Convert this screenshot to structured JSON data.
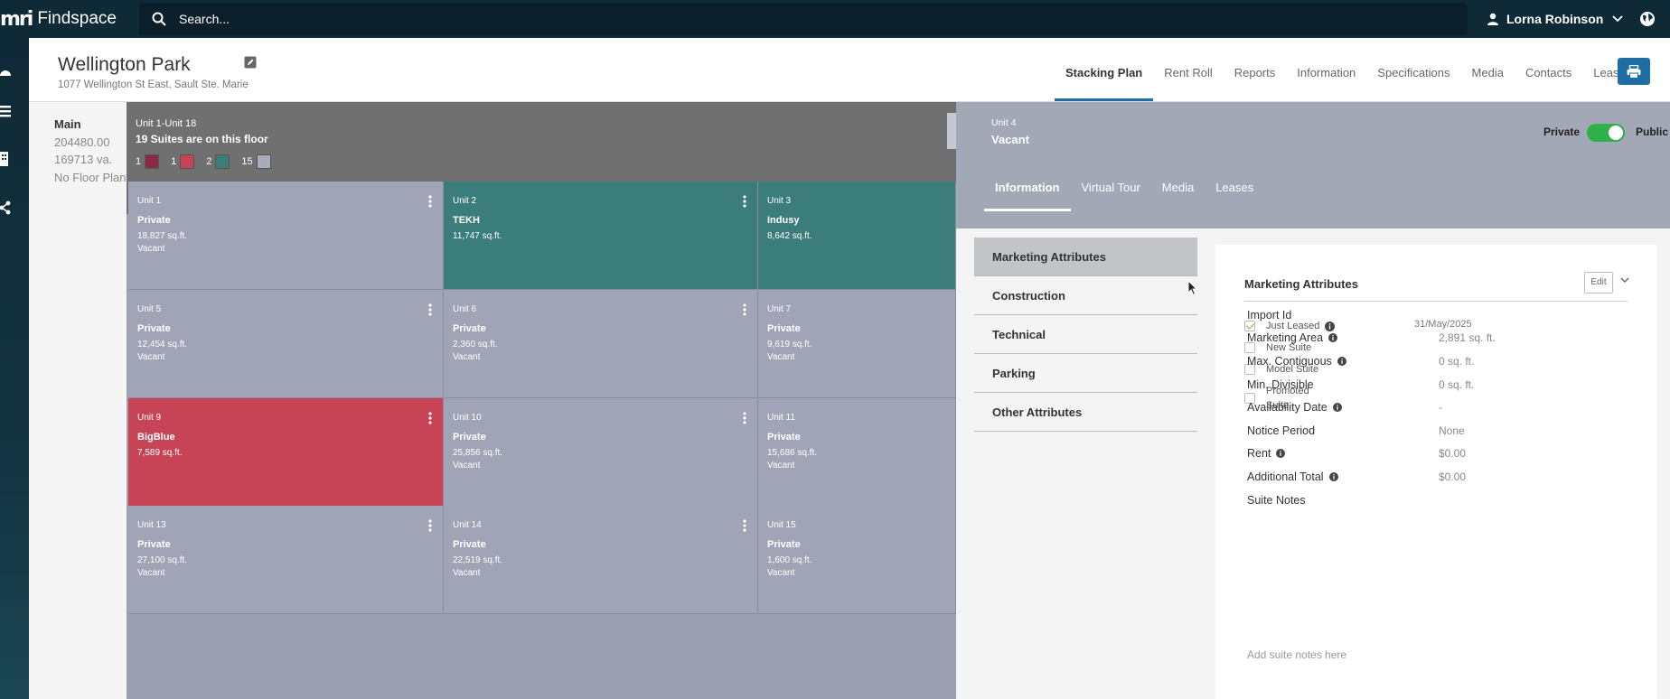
{
  "app": {
    "logo": "mri",
    "name": "Findspace",
    "search_placeholder": "Search...",
    "user_name": "Lorna Robinson"
  },
  "property": {
    "title": "Wellington Park",
    "address": "1077 Wellington St East, Sault Ste. Marie"
  },
  "nav_tabs": [
    "Stacking Plan",
    "Rent Roll",
    "Reports",
    "Information",
    "Specifications",
    "Media",
    "Contacts",
    "Leases"
  ],
  "active_tab": "Stacking Plan",
  "floor": {
    "name": "Main",
    "area": "204480.00",
    "va": "169713 va.",
    "plan": "No Floor Plan",
    "range": "Unit 1-Unit 18",
    "count": "19 Suites are on this floor",
    "legend": [
      {
        "count": "1",
        "color": "#8a2a45"
      },
      {
        "count": "1",
        "color": "#c64455"
      },
      {
        "count": "2",
        "color": "#3a7d7b"
      },
      {
        "count": "15",
        "color": "#a8abbb"
      }
    ]
  },
  "units": [
    {
      "no": "Unit 1",
      "tenant": "Private",
      "size": "18,827 sq.ft.",
      "status": "Vacant",
      "color": "#a1a4b6"
    },
    {
      "no": "Unit 2",
      "tenant": "TEKH",
      "size": "11,747 sq.ft.",
      "status": "",
      "color": "#3b7d7b"
    },
    {
      "no": "Unit 3",
      "tenant": "Indusy",
      "size": "8,642 sq.ft.",
      "status": "",
      "color": "#3b7d7b"
    },
    {
      "no": "Unit 5",
      "tenant": "Private",
      "size": "12,454 sq.ft.",
      "status": "Vacant",
      "color": "#a1a4b6"
    },
    {
      "no": "Unit 6",
      "tenant": "Private",
      "size": "2,360 sq.ft.",
      "status": "Vacant",
      "color": "#a1a4b6"
    },
    {
      "no": "Unit 7",
      "tenant": "Private",
      "size": "9,619 sq.ft.",
      "status": "Vacant",
      "color": "#a1a4b6"
    },
    {
      "no": "Unit 9",
      "tenant": "BigBlue",
      "size": "7,589 sq.ft.",
      "status": "",
      "color": "#c64455"
    },
    {
      "no": "Unit 10",
      "tenant": "Private",
      "size": "25,856 sq.ft.",
      "status": "Vacant",
      "color": "#a1a4b6"
    },
    {
      "no": "Unit 11",
      "tenant": "Private",
      "size": "15,686 sq.ft.",
      "status": "Vacant",
      "color": "#a1a4b6"
    },
    {
      "no": "Unit 13",
      "tenant": "Private",
      "size": "27,100 sq.ft.",
      "status": "Vacant",
      "color": "#a1a4b6"
    },
    {
      "no": "Unit 14",
      "tenant": "Private",
      "size": "22,519 sq.ft.",
      "status": "Vacant",
      "color": "#a1a4b6"
    },
    {
      "no": "Unit 15",
      "tenant": "Private",
      "size": "1,600 sq.ft.",
      "status": "Vacant",
      "color": "#a1a4b6"
    }
  ],
  "detail": {
    "unit": "Unit 4",
    "status": "Vacant",
    "private_label": "Private",
    "public_label": "Public",
    "tabs": [
      "Information",
      "Virtual Tour",
      "Media",
      "Leases"
    ],
    "active_tab": "Information",
    "sections": [
      "Marketing Attributes",
      "Construction",
      "Technical",
      "Parking",
      "Other Attributes"
    ],
    "card_title": "Marketing Attributes",
    "edit_label": "Edit",
    "checkboxes": [
      {
        "label": "Just Leased",
        "checked": true,
        "date": "31/May/2025"
      },
      {
        "label": "New Suite",
        "checked": false
      },
      {
        "label": "Model Suite",
        "checked": false
      },
      {
        "label": "Promoted Suite",
        "checked": false
      }
    ],
    "fields": [
      {
        "label": "Import Id",
        "value": "",
        "info": false
      },
      {
        "label": "Marketing Area",
        "value": "2,891 sq. ft.",
        "info": true
      },
      {
        "label": "Max. Contiguous",
        "value": "0 sq. ft.",
        "info": true
      },
      {
        "label": "Min. Divisible",
        "value": "0 sq. ft.",
        "info": false
      },
      {
        "label": "Availability Date",
        "value": "-",
        "info": true
      },
      {
        "label": "Notice Period",
        "value": "None",
        "info": false
      },
      {
        "label": "Rent",
        "value": "$0.00",
        "info": true
      },
      {
        "label": "Additional Total",
        "value": "$0.00",
        "info": true
      },
      {
        "label": "Suite Notes",
        "value": "",
        "info": false
      }
    ],
    "notes_placeholder": "Add suite notes here"
  }
}
